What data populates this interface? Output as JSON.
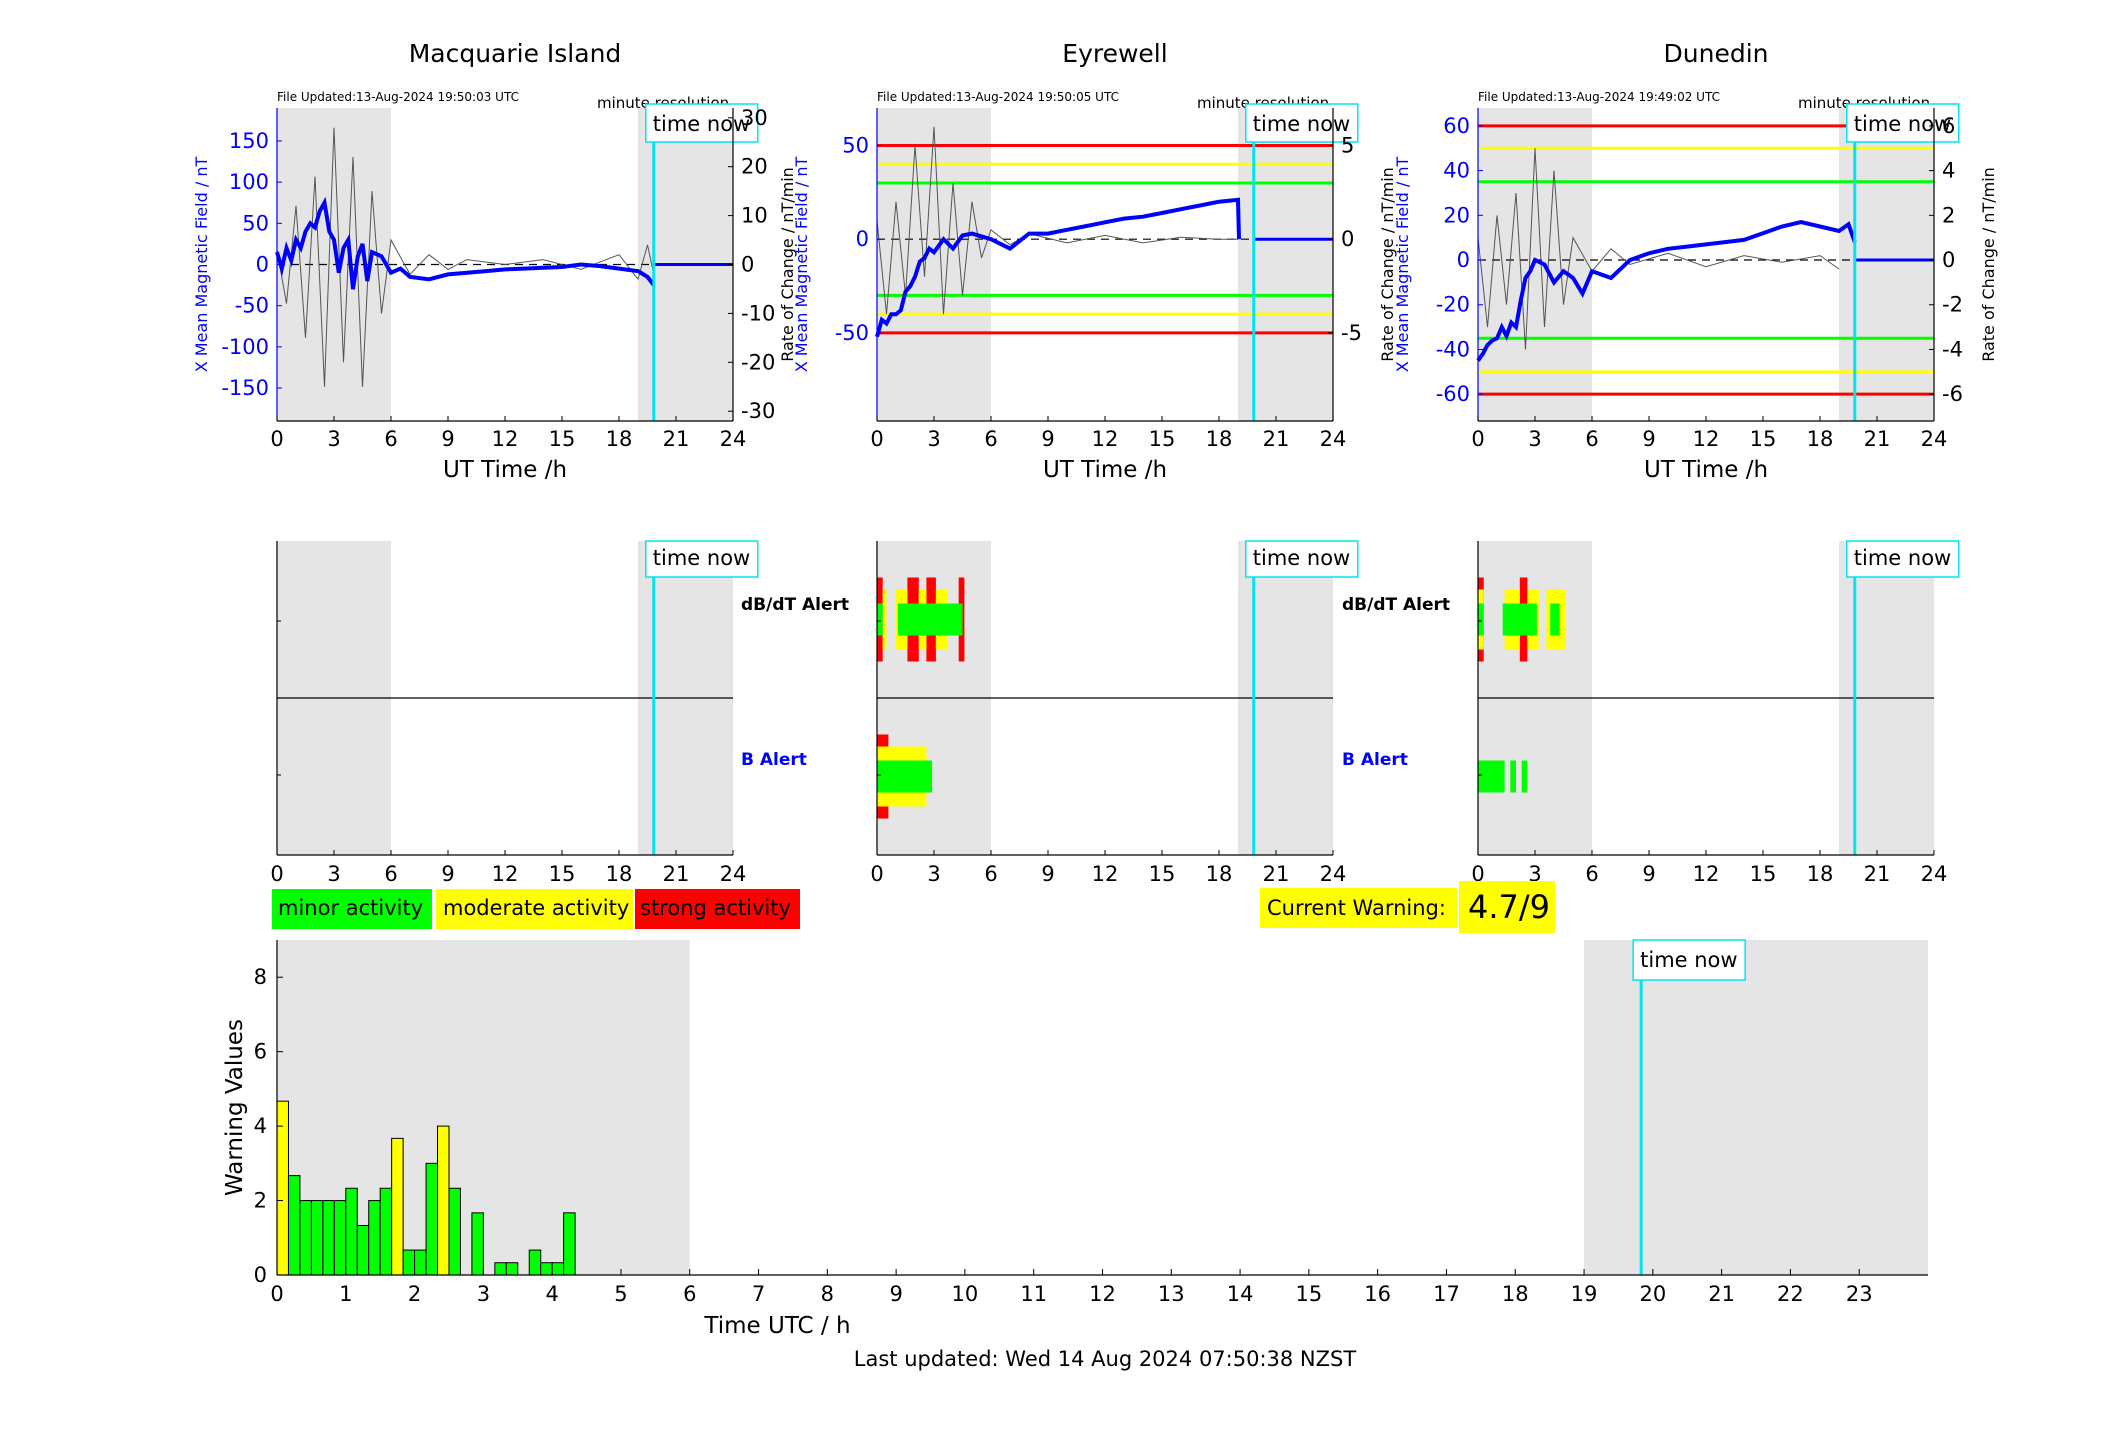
{
  "chart_data": {
    "type": "bar",
    "panels": [
      {
        "station": "Macquarie Island",
        "file_updated": "File Updated:13-Aug-2024 19:50:03 UTC",
        "resolution_label": "minute resolution",
        "time_now_label": "time now",
        "xlabel": "UT Time /h",
        "ylabel_left": "X Mean Magnetic Field / nT",
        "ylabel_right": "Rate of Change / nT/min",
        "xlim": [
          0,
          24
        ],
        "xticks": [
          "0",
          "3",
          "6",
          "9",
          "12",
          "15",
          "18",
          "21",
          "24"
        ],
        "ylim_left": [
          -190,
          190
        ],
        "yticks_left": [
          "150",
          "100",
          "50",
          "0",
          "-50",
          "-100",
          "-150"
        ],
        "ylim_right": [
          -32,
          32
        ],
        "yticks_right": [
          "30",
          "20",
          "10",
          "0",
          "-10",
          "-20",
          "-30"
        ],
        "thresholds": [],
        "time_now": 19.83,
        "field_series": {
          "x": [
            0,
            0.25,
            0.5,
            0.75,
            1,
            1.25,
            1.5,
            1.75,
            2,
            2.25,
            2.5,
            2.75,
            3,
            3.25,
            3.5,
            3.75,
            4,
            4.25,
            4.5,
            4.75,
            5,
            5.5,
            6,
            6.5,
            7,
            8,
            9,
            10,
            11,
            12,
            13,
            14,
            15,
            16,
            17,
            18,
            19,
            19.5,
            19.83
          ],
          "y": [
            15,
            -5,
            20,
            5,
            30,
            20,
            40,
            50,
            45,
            65,
            75,
            40,
            30,
            -10,
            20,
            30,
            -30,
            10,
            25,
            -20,
            15,
            10,
            -10,
            -5,
            -15,
            -18,
            -12,
            -10,
            -8,
            -6,
            -5,
            -4,
            -3,
            0,
            -2,
            -5,
            -8,
            -15,
            -25
          ]
        },
        "rate_series": {
          "x": [
            0,
            0.5,
            1,
            1.5,
            2,
            2.5,
            3,
            3.5,
            4,
            4.5,
            5,
            5.5,
            6,
            7,
            8,
            9,
            10,
            12,
            14,
            16,
            18,
            19,
            19.5,
            19.83
          ],
          "y": [
            3,
            -8,
            12,
            -15,
            18,
            -25,
            28,
            -20,
            22,
            -25,
            15,
            -10,
            5,
            -2,
            2,
            -1,
            1,
            0,
            1,
            -1,
            2,
            -3,
            4,
            -2
          ]
        },
        "alerts": {
          "dbdt_label": "dB/dT Alert",
          "b_label": "B Alert",
          "dbdt_blocks": [],
          "b_blocks": []
        }
      },
      {
        "station": "Eyrewell",
        "file_updated": "File Updated:13-Aug-2024 19:50:05 UTC",
        "resolution_label": "minute resolution",
        "time_now_label": "time now",
        "xlabel": "UT Time /h",
        "ylabel_left": "X Mean Magnetic Field / nT",
        "ylabel_right": "Rate of Change / nT/min",
        "xlim": [
          0,
          24
        ],
        "xticks": [
          "0",
          "3",
          "6",
          "9",
          "12",
          "15",
          "18",
          "21",
          "24"
        ],
        "ylim_left": [
          -97,
          70
        ],
        "yticks_left": [
          "50",
          "0",
          "-50"
        ],
        "ylim_right": [
          -9.7,
          7
        ],
        "yticks_right": [
          "5",
          "0",
          "-5"
        ],
        "thresholds": [
          {
            "value": 50,
            "color": "#ff0000"
          },
          {
            "value": 40,
            "color": "#ffff00"
          },
          {
            "value": 30,
            "color": "#00ff00"
          },
          {
            "value": -30,
            "color": "#00ff00"
          },
          {
            "value": -40,
            "color": "#ffff00"
          },
          {
            "value": -50,
            "color": "#ff0000"
          }
        ],
        "time_now": 19.83,
        "field_series": {
          "x": [
            0,
            0.25,
            0.5,
            0.75,
            1,
            1.25,
            1.5,
            1.75,
            2,
            2.25,
            2.5,
            2.75,
            3,
            3.5,
            4,
            4.5,
            5,
            6,
            7,
            8,
            9,
            10,
            11,
            12,
            13,
            14,
            15,
            16,
            17,
            18,
            19,
            19.05
          ],
          "y": [
            -52,
            -43,
            -45,
            -40,
            -40,
            -38,
            -28,
            -25,
            -20,
            -12,
            -10,
            -5,
            -7,
            0,
            -5,
            2,
            3,
            0,
            -5,
            3,
            3,
            5,
            7,
            9,
            11,
            12,
            14,
            16,
            18,
            20,
            21,
            0
          ]
        },
        "rate_series": {
          "x": [
            0,
            0.5,
            1,
            1.5,
            2,
            2.5,
            3,
            3.5,
            4,
            4.5,
            5,
            5.5,
            6,
            7,
            8,
            10,
            12,
            14,
            16,
            18,
            19
          ],
          "y": [
            1,
            -4,
            2,
            -3,
            5,
            -2,
            6,
            -4,
            3,
            -3,
            2,
            -1,
            0.5,
            -0.3,
            0.3,
            -0.2,
            0.2,
            -0.2,
            0.1,
            0,
            0
          ]
        },
        "alerts": {
          "dbdt_label": "dB/dT Alert",
          "b_label": "B Alert",
          "dbdt_blocks": [
            {
              "x0": 0.0,
              "x1": 0.3,
              "level": "strong"
            },
            {
              "x0": 0.3,
              "x1": 0.5,
              "level": "moderate"
            },
            {
              "x0": 1.0,
              "x1": 1.6,
              "level": "moderate"
            },
            {
              "x0": 1.6,
              "x1": 2.2,
              "level": "strong"
            },
            {
              "x0": 2.2,
              "x1": 2.6,
              "level": "moderate"
            },
            {
              "x0": 2.6,
              "x1": 3.1,
              "level": "strong"
            },
            {
              "x0": 3.1,
              "x1": 3.7,
              "level": "moderate"
            },
            {
              "x0": 4.3,
              "x1": 4.6,
              "level": "strong"
            },
            {
              "x0": 0.0,
              "x1": 0.3,
              "level": "minor"
            },
            {
              "x0": 1.1,
              "x1": 4.5,
              "level": "minor"
            }
          ],
          "b_blocks": [
            {
              "x0": 0.0,
              "x1": 0.6,
              "level": "strong"
            },
            {
              "x0": 0.0,
              "x1": 2.6,
              "level": "moderate"
            },
            {
              "x0": 0.0,
              "x1": 2.9,
              "level": "minor"
            }
          ]
        }
      },
      {
        "station": "Dunedin",
        "file_updated": "File Updated:13-Aug-2024 19:49:02 UTC",
        "resolution_label": "minute resolution",
        "time_now_label": "time now",
        "xlabel": "UT Time /h",
        "ylabel_left": "X Mean Magnetic Field / nT",
        "ylabel_right": "Rate of Change / nT/min",
        "xlim": [
          0,
          24
        ],
        "xticks": [
          "0",
          "3",
          "6",
          "9",
          "12",
          "15",
          "18",
          "21",
          "24"
        ],
        "ylim_left": [
          -72,
          68
        ],
        "yticks_left": [
          "60",
          "40",
          "20",
          "0",
          "-20",
          "-40",
          "-60"
        ],
        "ylim_right": [
          -7.2,
          6.8
        ],
        "yticks_right": [
          "6",
          "4",
          "2",
          "0",
          "-2",
          "-4",
          "-6"
        ],
        "thresholds": [
          {
            "value": 60,
            "color": "#ff0000"
          },
          {
            "value": 50,
            "color": "#ffff00"
          },
          {
            "value": 35,
            "color": "#00ff00"
          },
          {
            "value": -35,
            "color": "#00ff00"
          },
          {
            "value": -50,
            "color": "#ffff00"
          },
          {
            "value": -60,
            "color": "#ff0000"
          }
        ],
        "time_now": 19.83,
        "field_series": {
          "x": [
            0,
            0.25,
            0.5,
            0.75,
            1,
            1.25,
            1.5,
            1.75,
            2,
            2.25,
            2.5,
            2.75,
            3,
            3.5,
            4,
            4.5,
            5,
            5.5,
            6,
            7,
            8,
            9,
            10,
            11,
            12,
            13,
            14,
            15,
            16,
            17,
            18,
            19,
            19.5,
            19.83
          ],
          "y": [
            -45,
            -42,
            -38,
            -36,
            -35,
            -30,
            -34,
            -28,
            -30,
            -18,
            -8,
            -5,
            0,
            -2,
            -10,
            -5,
            -8,
            -15,
            -5,
            -8,
            0,
            3,
            5,
            6,
            7,
            8,
            9,
            12,
            15,
            17,
            15,
            13,
            16,
            8
          ]
        },
        "rate_series": {
          "x": [
            0,
            0.5,
            1,
            1.5,
            2,
            2.5,
            3,
            3.5,
            4,
            4.5,
            5,
            6,
            7,
            8,
            10,
            12,
            14,
            16,
            18,
            19
          ],
          "y": [
            1,
            -3,
            2,
            -2,
            3,
            -4,
            5,
            -3,
            4,
            -2,
            1,
            -0.5,
            0.5,
            -0.2,
            0.3,
            -0.3,
            0.2,
            -0.1,
            0.2,
            -0.4
          ]
        },
        "alerts": {
          "dbdt_label": "dB/dT Alert",
          "b_label": "B Alert",
          "dbdt_blocks": [
            {
              "x0": 0.0,
              "x1": 0.3,
              "level": "strong"
            },
            {
              "x0": 0.0,
              "x1": 0.3,
              "level": "moderate"
            },
            {
              "x0": 1.4,
              "x1": 2.2,
              "level": "moderate"
            },
            {
              "x0": 2.2,
              "x1": 2.6,
              "level": "strong"
            },
            {
              "x0": 2.6,
              "x1": 3.2,
              "level": "moderate"
            },
            {
              "x0": 3.6,
              "x1": 4.6,
              "level": "moderate"
            },
            {
              "x0": 0.0,
              "x1": 0.3,
              "level": "minor"
            },
            {
              "x0": 1.3,
              "x1": 3.1,
              "level": "minor"
            },
            {
              "x0": 3.8,
              "x1": 4.3,
              "level": "minor"
            }
          ],
          "b_blocks": [
            {
              "x0": 0.0,
              "x1": 1.4,
              "level": "minor"
            },
            {
              "x0": 1.7,
              "x1": 2.0,
              "level": "minor"
            },
            {
              "x0": 2.3,
              "x1": 2.6,
              "level": "minor"
            }
          ]
        }
      }
    ],
    "shaded_regions": [
      [
        0,
        6
      ],
      [
        19,
        24
      ]
    ],
    "legend": [
      {
        "label": "minor activity",
        "color": "#00ff00"
      },
      {
        "label": "moderate activity",
        "color": "#ffff00"
      },
      {
        "label": "strong activity",
        "color": "#ff0000"
      }
    ],
    "current_warning": {
      "label": "Current Warning:",
      "value": "4.7/9"
    },
    "warning_chart": {
      "type": "bar",
      "xlabel": "Time UTC / h",
      "ylabel": "Warning Values",
      "xlim": [
        0,
        24
      ],
      "ylim": [
        0,
        9
      ],
      "xticks": [
        "0",
        "1",
        "2",
        "3",
        "4",
        "5",
        "6",
        "7",
        "8",
        "9",
        "10",
        "11",
        "12",
        "13",
        "14",
        "15",
        "16",
        "17",
        "18",
        "19",
        "20",
        "21",
        "22",
        "23"
      ],
      "yticks": [
        "0",
        "2",
        "4",
        "6",
        "8"
      ],
      "shaded_regions": [
        [
          0,
          6
        ],
        [
          19,
          24
        ]
      ],
      "time_now": 19.83,
      "time_now_label": "time now",
      "bin_width_h": 0.1667,
      "bars": [
        {
          "x": 0.0,
          "value": 4.67,
          "color": "#ffff00"
        },
        {
          "x": 0.1667,
          "value": 2.67,
          "color": "#00ff00"
        },
        {
          "x": 0.3333,
          "value": 2.0,
          "color": "#00ff00"
        },
        {
          "x": 0.5,
          "value": 2.0,
          "color": "#00ff00"
        },
        {
          "x": 0.6667,
          "value": 2.0,
          "color": "#00ff00"
        },
        {
          "x": 0.8333,
          "value": 2.0,
          "color": "#00ff00"
        },
        {
          "x": 1.0,
          "value": 2.33,
          "color": "#00ff00"
        },
        {
          "x": 1.1667,
          "value": 1.33,
          "color": "#00ff00"
        },
        {
          "x": 1.3333,
          "value": 2.0,
          "color": "#00ff00"
        },
        {
          "x": 1.5,
          "value": 2.33,
          "color": "#00ff00"
        },
        {
          "x": 1.6667,
          "value": 3.67,
          "color": "#ffff00"
        },
        {
          "x": 1.8333,
          "value": 0.67,
          "color": "#00ff00"
        },
        {
          "x": 2.0,
          "value": 0.67,
          "color": "#00ff00"
        },
        {
          "x": 2.1667,
          "value": 3.0,
          "color": "#00ff00"
        },
        {
          "x": 2.3333,
          "value": 4.0,
          "color": "#ffff00"
        },
        {
          "x": 2.5,
          "value": 2.33,
          "color": "#00ff00"
        },
        {
          "x": 2.8333,
          "value": 1.67,
          "color": "#00ff00"
        },
        {
          "x": 3.1667,
          "value": 0.33,
          "color": "#00ff00"
        },
        {
          "x": 3.3333,
          "value": 0.33,
          "color": "#00ff00"
        },
        {
          "x": 3.6667,
          "value": 0.67,
          "color": "#00ff00"
        },
        {
          "x": 3.8333,
          "value": 0.33,
          "color": "#00ff00"
        },
        {
          "x": 4.0,
          "value": 0.33,
          "color": "#00ff00"
        },
        {
          "x": 4.1667,
          "value": 1.67,
          "color": "#00ff00"
        }
      ]
    },
    "last_updated": "Last updated: Wed 14 Aug 2024 07:50:38 NZST",
    "colors": {
      "field_line": "#0000ff",
      "rate_line": "#555555",
      "time_now_line": "#00e5ee",
      "shading": "#e5e5e5",
      "minor": "#00ff00",
      "moderate": "#ffff00",
      "strong": "#ff0000"
    }
  }
}
